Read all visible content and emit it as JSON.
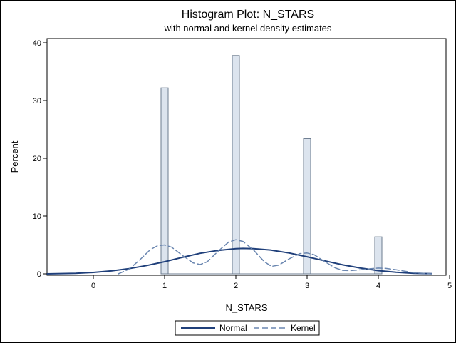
{
  "chart_data": {
    "type": "bar",
    "title": "Histogram Plot: N_STARS",
    "subtitle": "with normal and kernel density estimates",
    "xlabel": "N_STARS",
    "ylabel": "Percent",
    "xlim": [
      -0.65,
      4.95
    ],
    "ylim": [
      0,
      40
    ],
    "x_ticks": [
      0,
      1,
      2,
      3,
      4,
      5
    ],
    "y_ticks": [
      0,
      10,
      20,
      30,
      40
    ],
    "bars": [
      {
        "x": 1,
        "value": 32.2
      },
      {
        "x": 2,
        "value": 37.8
      },
      {
        "x": 3,
        "value": 23.4
      },
      {
        "x": 4,
        "value": 6.4
      }
    ],
    "bar_width": 0.1,
    "series": [
      {
        "name": "Normal",
        "style": "solid",
        "color": "#1f3f7a",
        "x": [
          -0.65,
          -0.25,
          0.0,
          0.25,
          0.5,
          0.75,
          1.0,
          1.25,
          1.5,
          1.75,
          2.0,
          2.1,
          2.25,
          2.5,
          2.75,
          3.0,
          3.25,
          3.5,
          3.75,
          4.0,
          4.25,
          4.5,
          4.75
        ],
        "y": [
          0.0,
          0.1,
          0.25,
          0.5,
          0.9,
          1.45,
          2.1,
          2.85,
          3.55,
          4.05,
          4.35,
          4.4,
          4.35,
          4.1,
          3.6,
          2.95,
          2.25,
          1.55,
          1.0,
          0.55,
          0.28,
          0.1,
          0.03
        ]
      },
      {
        "name": "Kernel",
        "style": "dashed",
        "color": "#6a86b0",
        "x": [
          0.35,
          0.5,
          0.65,
          0.8,
          0.9,
          1.0,
          1.1,
          1.25,
          1.4,
          1.5,
          1.6,
          1.75,
          1.9,
          2.0,
          2.1,
          2.25,
          2.4,
          2.5,
          2.6,
          2.75,
          2.9,
          3.0,
          3.1,
          3.25,
          3.4,
          3.5,
          3.6,
          3.75,
          3.9,
          4.0,
          4.1,
          4.25,
          4.5,
          4.75
        ],
        "y": [
          0.0,
          0.8,
          2.4,
          4.2,
          4.85,
          5.0,
          4.6,
          3.2,
          1.9,
          1.6,
          2.1,
          3.9,
          5.5,
          5.9,
          5.6,
          4.1,
          2.1,
          1.3,
          1.5,
          2.6,
          3.5,
          3.6,
          3.3,
          2.1,
          1.0,
          0.6,
          0.55,
          0.7,
          0.9,
          1.0,
          0.95,
          0.7,
          0.2,
          0.0
        ]
      }
    ],
    "legend": {
      "position": "bottom",
      "entries": [
        "Normal",
        "Kernel"
      ]
    },
    "grid": false,
    "colors": {
      "bar_fill": "#dce4ee",
      "bar_stroke": "#6b7b8f",
      "normal_line": "#1f3f7a",
      "kernel_line": "#6a86b0"
    }
  }
}
